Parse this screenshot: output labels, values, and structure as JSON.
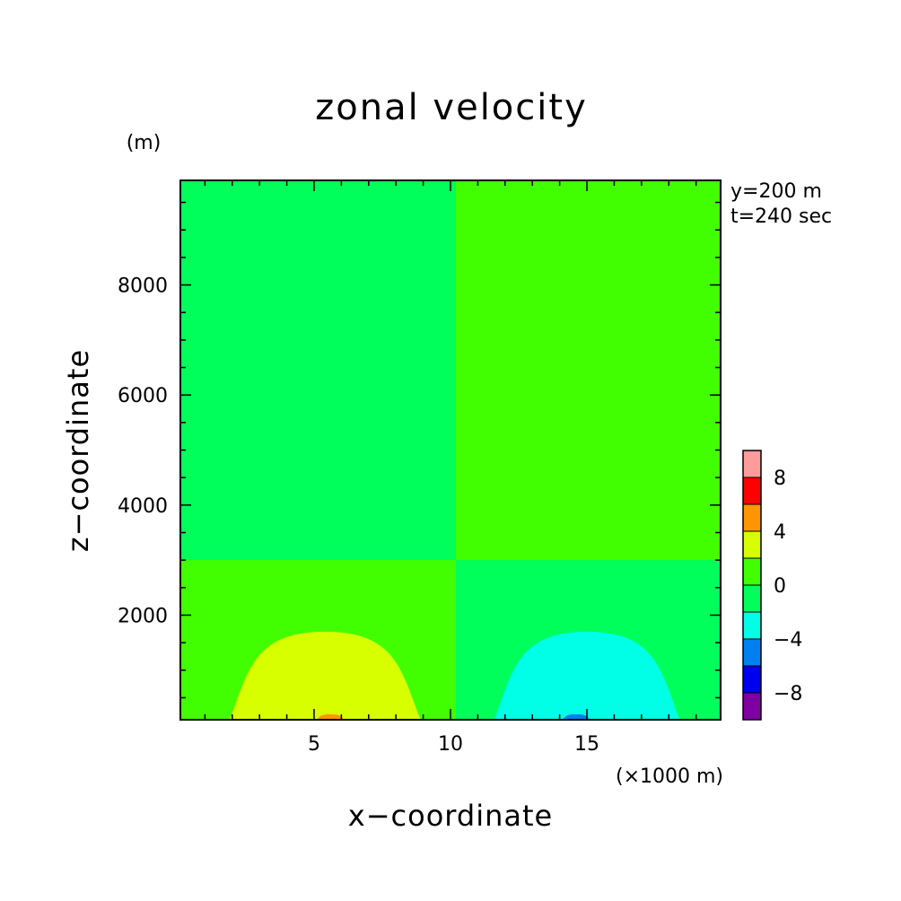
{
  "chart_data": {
    "type": "heatmap",
    "title": "zonal velocity",
    "xlabel": "x−coordinate",
    "ylabel": "z−coordinate",
    "x_unit": "(×1000 m)",
    "y_unit": "(m)",
    "info": [
      "y=200 m",
      "t=240 sec"
    ],
    "xlim": [
      0.1,
      19.9
    ],
    "ylim": [
      100,
      9900
    ],
    "x_ticks": [
      5,
      10,
      15
    ],
    "x_tick_labels": [
      "5",
      "10",
      "15"
    ],
    "y_ticks": [
      2000,
      4000,
      6000,
      8000
    ],
    "y_tick_labels": [
      "2000",
      "4000",
      "6000",
      "8000"
    ],
    "colorbar": {
      "levels": [
        -10,
        -8,
        -6,
        -4,
        -2,
        0,
        2,
        4,
        6,
        8,
        10
      ],
      "colors": [
        "#7f00a0",
        "#0000f0",
        "#0080f0",
        "#00ffe6",
        "#00ff5a",
        "#41ff00",
        "#d7ff00",
        "#ff9600",
        "#ff0000",
        "#ff9b9b"
      ],
      "labels": [
        "−8",
        "−4",
        "0",
        "4",
        "8"
      ],
      "label_values": [
        -8,
        -4,
        0,
        4,
        8
      ]
    },
    "regions": [
      {
        "name": "upper-left",
        "value_range": [
          -2,
          0
        ],
        "color": "#00ff5a"
      },
      {
        "name": "upper-right",
        "value_range": [
          0,
          2
        ],
        "color": "#41ff00"
      },
      {
        "name": "lower-left",
        "value_range": [
          0,
          2
        ],
        "color": "#41ff00"
      },
      {
        "name": "lower-right",
        "value_range": [
          -2,
          0
        ],
        "color": "#00ff5a"
      },
      {
        "name": "positive-lobe",
        "value_range": [
          2,
          4
        ],
        "color": "#d7ff00",
        "x_range": [
          1.9,
          8.9
        ],
        "z_top": 1700
      },
      {
        "name": "negative-lobe",
        "value_range": [
          -4,
          -2
        ],
        "color": "#00ffe6",
        "x_range": [
          11.6,
          18.4
        ],
        "z_top": 1700
      },
      {
        "name": "positive-core",
        "value_range": [
          4,
          6
        ],
        "color": "#ff9600",
        "x_range": [
          5.1,
          6.1
        ],
        "z_top": 200
      },
      {
        "name": "negative-core",
        "value_range": [
          -6,
          -4
        ],
        "color": "#0080f0",
        "x_range": [
          14.1,
          15.1
        ],
        "z_top": 200
      }
    ]
  }
}
